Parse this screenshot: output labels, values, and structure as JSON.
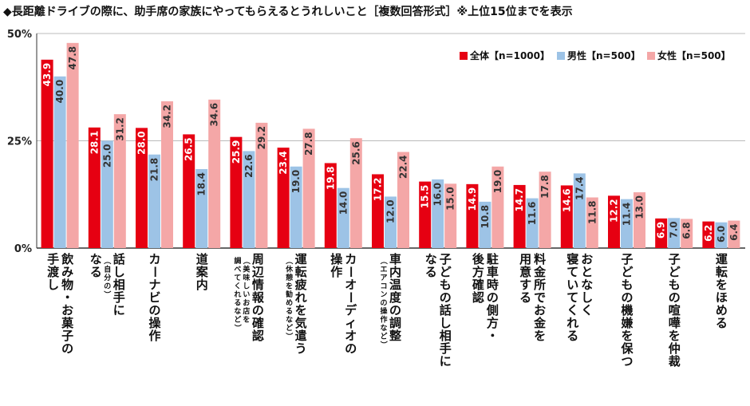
{
  "title": "◆長距離ドライブの際に、助手席の家族にやってもらえるとうれしいこと［複数回答形式］※上位15位までを表示",
  "colors": {
    "total": "#e60012",
    "male": "#9dc3e6",
    "female": "#f4a7a7",
    "axis": "#333333",
    "grid": "#bbbbbb"
  },
  "chart_data": {
    "type": "bar",
    "ylim": [
      0,
      50
    ],
    "yticks": [
      "0%",
      "25%",
      "50%"
    ],
    "ytick_values": [
      0,
      25,
      50
    ],
    "legend_position": "top-right",
    "categories": [
      {
        "lines": [
          "飲み物・お菓子の",
          "手渡し"
        ],
        "notes": []
      },
      {
        "lines": [
          "話し相手に",
          "なる"
        ],
        "notes": [
          "（自分の）"
        ]
      },
      {
        "lines": [
          "カーナビの操作"
        ],
        "notes": []
      },
      {
        "lines": [
          "道案内"
        ],
        "notes": []
      },
      {
        "lines": [
          "周辺情報の確認"
        ],
        "notes": [
          "（美味しいお店を",
          "調べてくれるなど）"
        ]
      },
      {
        "lines": [
          "運転疲れを気遣う"
        ],
        "notes": [
          "（休憩を勧めるなど）"
        ]
      },
      {
        "lines": [
          "カーオーディオの",
          "操作"
        ],
        "notes": []
      },
      {
        "lines": [
          "車内温度の調整"
        ],
        "notes": [
          "（エアコンの操作など）"
        ]
      },
      {
        "lines": [
          "子どもの話し相手に",
          "なる"
        ],
        "notes": []
      },
      {
        "lines": [
          "駐車時の側方・",
          "後方確認"
        ],
        "notes": []
      },
      {
        "lines": [
          "料金所でお金を",
          "用意する"
        ],
        "notes": []
      },
      {
        "lines": [
          "おとなしく",
          "寝ていてくれる"
        ],
        "notes": []
      },
      {
        "lines": [
          "子どもの機嫌を保つ"
        ],
        "notes": []
      },
      {
        "lines": [
          "子どもの喧嘩を仲裁"
        ],
        "notes": []
      },
      {
        "lines": [
          "運転をほめる"
        ],
        "notes": []
      }
    ],
    "series": [
      {
        "name": "全体【n=1000】",
        "color": "#e60012",
        "values": [
          43.9,
          28.1,
          28.0,
          26.5,
          25.9,
          23.4,
          19.8,
          17.2,
          15.5,
          14.9,
          14.7,
          14.6,
          12.2,
          6.9,
          6.2
        ]
      },
      {
        "name": "男性【n=500】",
        "color": "#9dc3e6",
        "values": [
          40.0,
          25.0,
          21.8,
          18.4,
          22.6,
          19.0,
          14.0,
          12.0,
          16.0,
          10.8,
          11.6,
          17.4,
          11.4,
          7.0,
          6.0
        ]
      },
      {
        "name": "女性【n=500】",
        "color": "#f4a7a7",
        "values": [
          47.8,
          31.2,
          34.2,
          34.6,
          29.2,
          27.8,
          25.6,
          22.4,
          15.0,
          19.0,
          17.8,
          11.8,
          13.0,
          6.8,
          6.4
        ]
      }
    ]
  }
}
